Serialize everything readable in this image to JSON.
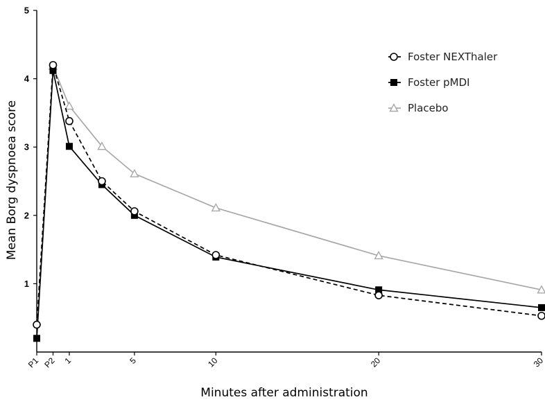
{
  "chart_data": {
    "type": "line",
    "title": "",
    "xlabel": "Minutes after administration",
    "ylabel": "Mean Borg dyspnoea score",
    "ylim": [
      0,
      5
    ],
    "y_ticks": [
      1,
      2,
      3,
      4,
      5
    ],
    "x_ticks": [
      "P1",
      "P2",
      "1",
      "5",
      "10",
      "20",
      "30"
    ],
    "x_ticks_pos": [
      -2,
      -1,
      0,
      4,
      9,
      19,
      29
    ],
    "xlim": [
      -2,
      29
    ],
    "grid": false,
    "legend_position": "top-right",
    "series": [
      {
        "name": "Foster NEXThaler",
        "color": "#000000",
        "dash": "dashed",
        "marker": "open-circle",
        "x": [
          -2,
          -1,
          0,
          2,
          4,
          9,
          19,
          29
        ],
        "y": [
          0.4,
          4.2,
          3.38,
          2.5,
          2.06,
          1.42,
          0.83,
          0.53
        ]
      },
      {
        "name": "Foster pMDI",
        "color": "#000000",
        "dash": "solid",
        "marker": "filled-square",
        "x": [
          -2,
          -1,
          0,
          2,
          4,
          9,
          19,
          29
        ],
        "y": [
          0.2,
          4.12,
          3.01,
          2.45,
          2.0,
          1.39,
          0.91,
          0.65
        ]
      },
      {
        "name": "Placebo",
        "color": "#a8a8a8",
        "dash": "solid",
        "marker": "open-triangle",
        "x": [
          -1,
          0,
          2,
          4,
          9,
          19,
          29
        ],
        "y": [
          4.18,
          3.6,
          3.01,
          2.61,
          2.11,
          1.41,
          0.91
        ]
      }
    ]
  }
}
